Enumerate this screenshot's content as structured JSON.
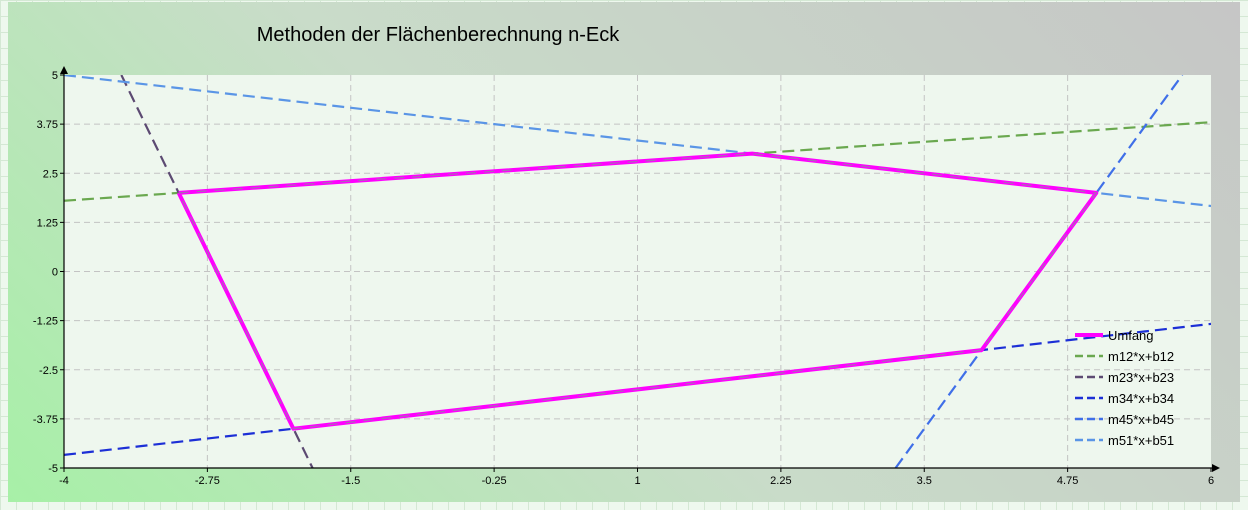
{
  "chart_data": {
    "type": "line",
    "title": "Methoden der Flächenberechnung n-Eck",
    "xlabel": "",
    "ylabel": "",
    "xlim": [
      -4,
      6
    ],
    "ylim": [
      -5,
      5
    ],
    "x_ticks": [
      "-4",
      "-2.75",
      "-1.5",
      "-0.25",
      "1",
      "2.25",
      "3.5",
      "4.75",
      "6"
    ],
    "y_ticks": [
      "5",
      "3.75",
      "2.5",
      "1.25",
      "0",
      "-1.25",
      "-2.5",
      "-3.75",
      "-5"
    ],
    "grid": true,
    "legend_position": "bottom-right",
    "series": [
      {
        "name": "Umfang",
        "color": "#ff00ff",
        "style": "solid",
        "points": [
          [
            -3,
            2
          ],
          [
            2,
            3
          ],
          [
            5,
            2
          ],
          [
            4,
            -2
          ],
          [
            -2,
            -4
          ],
          [
            -3,
            2
          ]
        ]
      },
      {
        "name": "m12*x+b12",
        "color": "#6aa84f",
        "style": "dashed",
        "points": [
          [
            -4,
            1.8
          ],
          [
            6,
            3.8
          ]
        ]
      },
      {
        "name": "m23*x+b23",
        "color": "#5c4a72",
        "style": "dashed",
        "points": [
          [
            -3.5,
            5
          ],
          [
            -1.833,
            -5
          ]
        ]
      },
      {
        "name": "m34*x+b34",
        "color": "#1c2fd6",
        "style": "dashed",
        "points": [
          [
            -4,
            -4.667
          ],
          [
            6,
            -1.333
          ]
        ]
      },
      {
        "name": "m45*x+b45",
        "color": "#3f6fe8",
        "style": "dashed",
        "points": [
          [
            3.25,
            -5
          ],
          [
            5.75,
            5
          ]
        ]
      },
      {
        "name": "m51*x+b51",
        "color": "#5a95e6",
        "style": "dashed",
        "points": [
          [
            -4,
            5
          ],
          [
            6,
            1.667
          ]
        ]
      }
    ]
  }
}
